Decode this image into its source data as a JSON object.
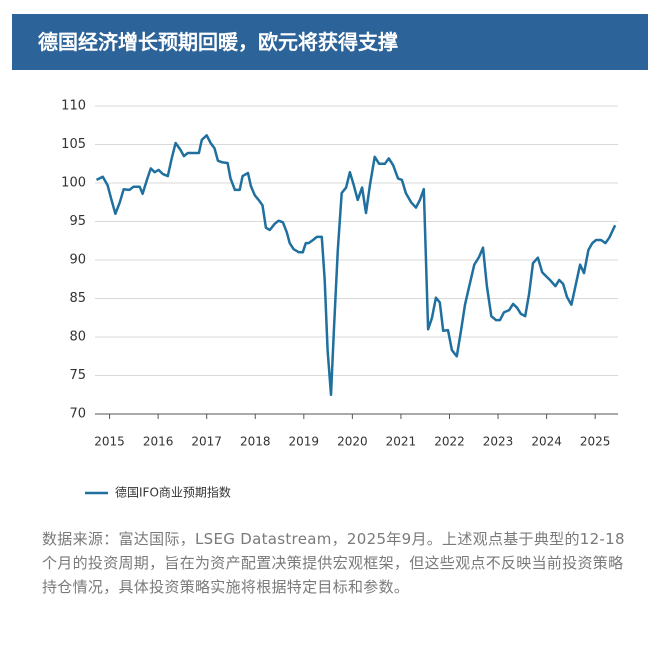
{
  "chart_data": {
    "type": "line",
    "title": "德国经济增长预期回暖，欧元将获得支撑",
    "footnote": "数据来源：富达国际，LSEG Datastream，2025年9月。上述观点基于典型的12-18个月的投资周期，旨在为资产配置决策提供宏观框架，但这些观点不反映当前投资策略持仓情况，具体投资策略实施将根据特定目标和参数。",
    "x": [
      2014.73,
      2014.86,
      2014.96,
      2015.04,
      2015.12,
      2015.21,
      2015.29,
      2015.41,
      2015.49,
      2015.62,
      2015.68,
      2015.78,
      2015.85,
      2015.93,
      2016.01,
      2016.09,
      2016.2,
      2016.28,
      2016.36,
      2016.46,
      2016.53,
      2016.61,
      2016.75,
      2016.84,
      2016.9,
      2017.0,
      2017.08,
      2017.16,
      2017.23,
      2017.31,
      2017.43,
      2017.49,
      2017.58,
      2017.68,
      2017.74,
      2017.85,
      2017.91,
      2017.99,
      2018.07,
      2018.15,
      2018.22,
      2018.3,
      2018.4,
      2018.48,
      2018.57,
      2018.65,
      2018.71,
      2018.79,
      2018.9,
      2018.98,
      2019.04,
      2019.1,
      2019.19,
      2019.27,
      2019.37,
      2019.43,
      2019.49,
      2019.56,
      2019.62,
      2019.7,
      2019.78,
      2019.87,
      2019.95,
      2020.03,
      2020.11,
      2020.2,
      2020.28,
      2020.36,
      2020.46,
      2020.55,
      2020.67,
      2020.75,
      2020.84,
      2020.94,
      2021.02,
      2021.1,
      2021.21,
      2021.31,
      2021.39,
      2021.47,
      2021.56,
      2021.64,
      2021.72,
      2021.8,
      2021.87,
      2021.97,
      2022.05,
      2022.15,
      2022.24,
      2022.32,
      2022.4,
      2022.51,
      2022.61,
      2022.69,
      2022.77,
      2022.86,
      2022.96,
      2023.04,
      2023.12,
      2023.23,
      2023.31,
      2023.39,
      2023.47,
      2023.56,
      2023.64,
      2023.72,
      2023.82,
      2023.91,
      2023.99,
      2024.07,
      2024.18,
      2024.26,
      2024.34,
      2024.42,
      2024.51,
      2024.59,
      2024.69,
      2024.77,
      2024.86,
      2024.94,
      2025.02,
      2025.12,
      2025.21,
      2025.29,
      2025.41
    ],
    "series": [
      {
        "name": "德国IFO商业预期指数",
        "color": "#1f6f9f",
        "values": [
          100.4,
          100.8,
          99.7,
          97.8,
          96.0,
          97.5,
          99.2,
          99.1,
          99.5,
          99.5,
          98.6,
          100.6,
          101.9,
          101.4,
          101.7,
          101.2,
          100.9,
          103.2,
          105.2,
          104.3,
          103.5,
          103.9,
          103.9,
          103.9,
          105.6,
          106.2,
          105.2,
          104.5,
          102.9,
          102.7,
          102.6,
          100.6,
          99.1,
          99.1,
          100.9,
          101.3,
          99.6,
          98.4,
          97.8,
          97.1,
          94.2,
          93.9,
          94.7,
          95.1,
          94.9,
          93.6,
          92.2,
          91.4,
          91.0,
          91.0,
          92.2,
          92.2,
          92.6,
          93.0,
          93.0,
          87.4,
          78.3,
          72.5,
          80.9,
          91.3,
          98.7,
          99.4,
          101.4,
          99.7,
          97.8,
          99.4,
          96.1,
          99.7,
          103.4,
          102.5,
          102.5,
          103.2,
          102.3,
          100.6,
          100.4,
          98.7,
          97.5,
          96.8,
          97.8,
          99.2,
          81.0,
          82.5,
          85.1,
          84.5,
          80.8,
          80.9,
          78.3,
          77.5,
          80.9,
          84.2,
          86.4,
          89.4,
          90.4,
          91.6,
          86.6,
          82.7,
          82.2,
          82.2,
          83.2,
          83.5,
          84.3,
          83.8,
          83.0,
          82.7,
          85.6,
          89.6,
          90.3,
          88.4,
          87.9,
          87.4,
          86.6,
          87.4,
          86.9,
          85.2,
          84.2,
          86.5,
          89.4,
          88.3,
          91.3,
          92.2,
          92.6,
          92.6,
          92.2,
          92.9,
          94.5
        ]
      }
    ],
    "xlim": [
      2014.7,
      2025.47
    ],
    "xticks": [
      2015,
      2016,
      2017,
      2018,
      2019,
      2020,
      2021,
      2022,
      2023,
      2024,
      2025
    ],
    "ylim": [
      70,
      110
    ],
    "yticks": [
      70,
      75,
      80,
      85,
      90,
      95,
      100,
      105,
      110
    ],
    "grid": true
  }
}
